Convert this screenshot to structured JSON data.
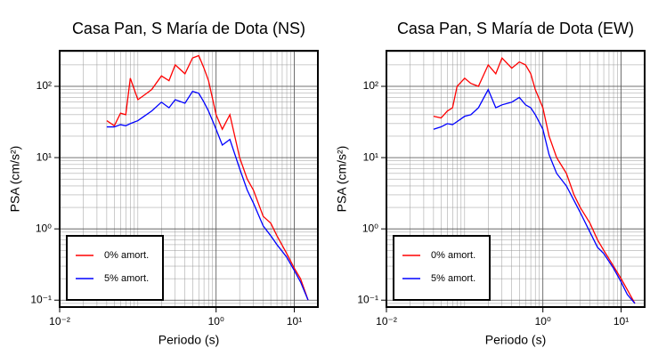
{
  "chart_data": [
    {
      "type": "line",
      "title": "Casa Pan, S María de Dota (NS)",
      "xlabel": "Periodo (s)",
      "ylabel": "PSA (cm/s²)",
      "xscale": "log",
      "yscale": "log",
      "grid": true,
      "legend": "lower left",
      "xlim": [
        0.01,
        20
      ],
      "ylim": [
        0.08,
        316
      ],
      "xticks": [
        {
          "value": 0.01,
          "label": "10⁻²"
        },
        {
          "value": 1,
          "label": "10⁰"
        },
        {
          "value": 10,
          "label": "10¹"
        }
      ],
      "yticks": [
        {
          "value": 0.1,
          "label": "10⁻¹"
        },
        {
          "value": 1,
          "label": "10⁰"
        },
        {
          "value": 10,
          "label": "10¹"
        },
        {
          "value": 100,
          "label": "10²"
        }
      ],
      "x": [
        0.04,
        0.05,
        0.06,
        0.07,
        0.08,
        0.1,
        0.12,
        0.15,
        0.2,
        0.25,
        0.3,
        0.4,
        0.5,
        0.6,
        0.7,
        0.8,
        1,
        1.2,
        1.5,
        2,
        2.5,
        3,
        4,
        5,
        6,
        8,
        10,
        12,
        15
      ],
      "series": [
        {
          "name": "0% amort.",
          "color": "#ff0000",
          "values": [
            33,
            28,
            42,
            40,
            130,
            65,
            75,
            90,
            140,
            120,
            200,
            150,
            250,
            270,
            180,
            120,
            40,
            25,
            40,
            10,
            5,
            3.5,
            1.5,
            1.2,
            0.8,
            0.45,
            0.28,
            0.2,
            0.1
          ]
        },
        {
          "name": "5% amort.",
          "color": "#0000ff",
          "values": [
            27,
            27,
            29,
            28,
            30,
            33,
            38,
            45,
            60,
            50,
            65,
            58,
            85,
            80,
            60,
            45,
            25,
            15,
            18,
            7,
            3.5,
            2.3,
            1.1,
            0.8,
            0.6,
            0.4,
            0.26,
            0.18,
            0.1
          ]
        }
      ]
    },
    {
      "type": "line",
      "title": "Casa Pan, S María de Dota (EW)",
      "xlabel": "Periodo (s)",
      "ylabel": "PSA (cm/s²)",
      "xscale": "log",
      "yscale": "log",
      "grid": true,
      "legend": "lower left",
      "xlim": [
        0.01,
        20
      ],
      "ylim": [
        0.08,
        316
      ],
      "xticks": [
        {
          "value": 0.01,
          "label": "10⁻²"
        },
        {
          "value": 1,
          "label": "10⁰"
        },
        {
          "value": 10,
          "label": "10¹"
        }
      ],
      "yticks": [
        {
          "value": 0.1,
          "label": "10⁻¹"
        },
        {
          "value": 1,
          "label": "10⁰"
        },
        {
          "value": 10,
          "label": "10¹"
        },
        {
          "value": 100,
          "label": "10²"
        }
      ],
      "x": [
        0.04,
        0.05,
        0.06,
        0.07,
        0.08,
        0.1,
        0.12,
        0.15,
        0.2,
        0.25,
        0.3,
        0.4,
        0.5,
        0.6,
        0.7,
        0.8,
        1,
        1.2,
        1.5,
        2,
        2.5,
        3,
        4,
        5,
        6,
        8,
        10,
        12,
        15
      ],
      "series": [
        {
          "name": "0% amort.",
          "color": "#ff0000",
          "values": [
            38,
            36,
            45,
            50,
            100,
            130,
            110,
            100,
            200,
            150,
            250,
            180,
            220,
            200,
            150,
            90,
            50,
            20,
            10,
            6,
            3,
            2,
            1.2,
            0.7,
            0.5,
            0.3,
            0.2,
            0.14,
            0.09
          ]
        },
        {
          "name": "5% amort.",
          "color": "#0000ff",
          "values": [
            25,
            27,
            30,
            29,
            32,
            38,
            40,
            50,
            90,
            50,
            55,
            60,
            70,
            55,
            50,
            40,
            25,
            11,
            6,
            4,
            2.5,
            1.7,
            0.9,
            0.55,
            0.45,
            0.28,
            0.18,
            0.12,
            0.09
          ]
        }
      ]
    }
  ]
}
